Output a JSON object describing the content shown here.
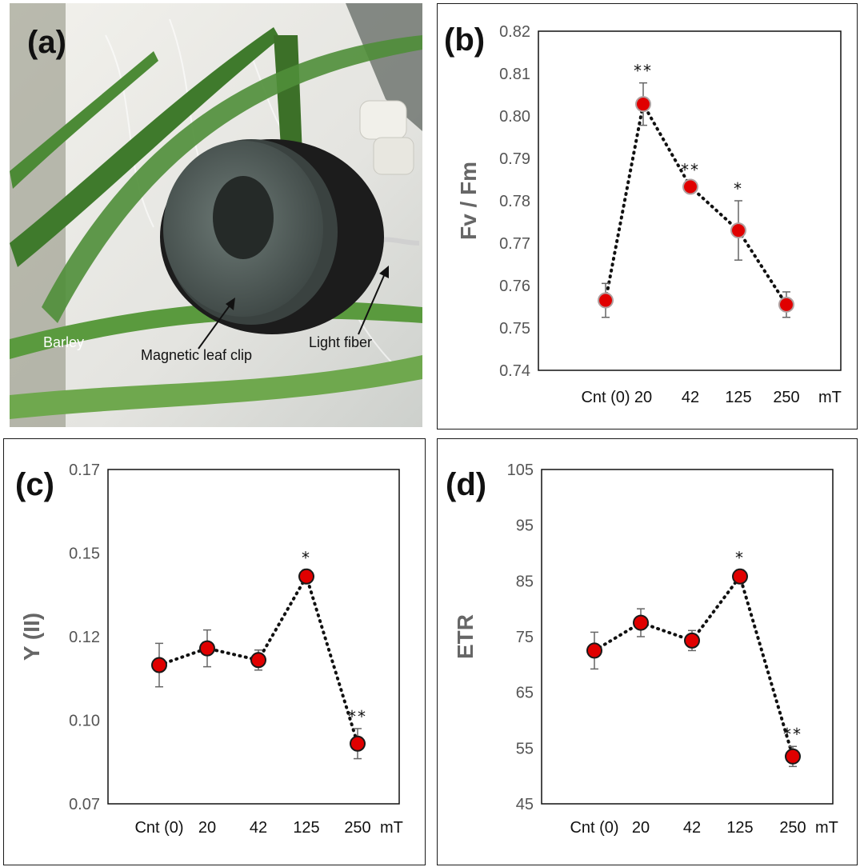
{
  "panels": {
    "a": {
      "label": "(a)",
      "annotations": {
        "barley": "Barley",
        "clip": "Magnetic leaf clip",
        "fiber": "Light fiber"
      }
    }
  },
  "chart_data": [
    {
      "id": "b",
      "panel_label": "(b)",
      "type": "line",
      "ylabel": "Fv / Fm",
      "unit": "mT",
      "categories": [
        "Cnt (0)",
        "20",
        "42",
        "125",
        "250"
      ],
      "yticks": [
        "0.74",
        "0.75",
        "0.76",
        "0.77",
        "0.78",
        "0.79",
        "0.80",
        "0.81",
        "0.82"
      ],
      "ylim": [
        0.74,
        0.82
      ],
      "series": [
        {
          "name": "Fv/Fm",
          "values": [
            0.7565,
            0.8028,
            0.7833,
            0.773,
            0.7555
          ],
          "error": [
            0.004,
            0.005,
            0.0,
            0.007,
            0.003
          ],
          "significance": [
            "",
            "**",
            "**",
            "*",
            ""
          ]
        }
      ],
      "colors": {
        "marker_fill": "#e00000",
        "marker_edge": "#b0a0a0",
        "line": "#111111",
        "error": "#666666"
      }
    },
    {
      "id": "c",
      "panel_label": "(c)",
      "type": "line",
      "ylabel": "Y (II)",
      "unit": "mT",
      "categories": [
        "Cnt (0)",
        "20",
        "42",
        "125",
        "250"
      ],
      "yticks": [
        "0.07",
        "0.10",
        "0.12",
        "0.15",
        "0.17"
      ],
      "ylim": [
        0.075,
        0.175
      ],
      "series": [
        {
          "name": "Y(II)",
          "values": [
            0.1165,
            0.1215,
            0.118,
            0.143,
            0.093
          ],
          "error": [
            0.0065,
            0.0055,
            0.003,
            0.002,
            0.0045
          ],
          "significance": [
            "",
            "",
            "",
            "*",
            "**"
          ]
        }
      ],
      "colors": {
        "marker_fill": "#e00000",
        "marker_edge": "#1a1a1a",
        "line": "#111111",
        "error": "#666666"
      }
    },
    {
      "id": "d",
      "panel_label": "(d)",
      "type": "line",
      "ylabel": "ETR",
      "unit": "mT",
      "categories": [
        "Cnt (0)",
        "20",
        "42",
        "125",
        "250"
      ],
      "yticks": [
        "45",
        "55",
        "65",
        "75",
        "85",
        "95",
        "105"
      ],
      "ylim": [
        45,
        105
      ],
      "series": [
        {
          "name": "ETR",
          "values": [
            72.5,
            77.5,
            74.3,
            85.8,
            53.5
          ],
          "error": [
            3.3,
            2.5,
            1.8,
            1.2,
            1.8
          ],
          "significance": [
            "",
            "",
            "",
            "*",
            "**"
          ]
        }
      ],
      "colors": {
        "marker_fill": "#e00000",
        "marker_edge": "#1a1a1a",
        "line": "#111111",
        "error": "#666666"
      }
    }
  ]
}
